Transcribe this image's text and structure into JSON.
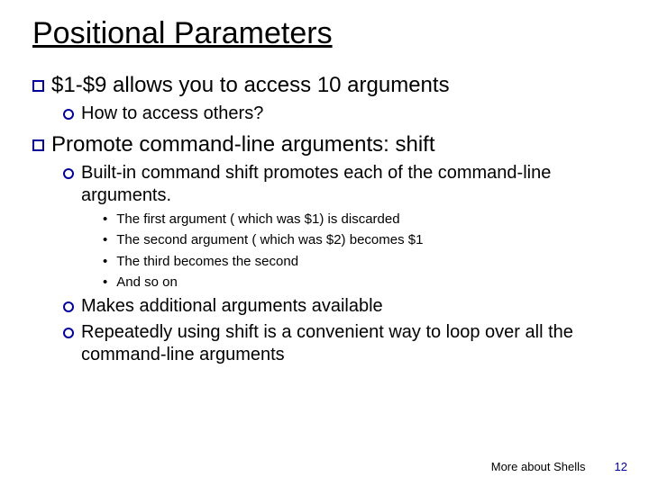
{
  "title": "Positional Parameters",
  "colors": {
    "bullet_outline": "#000099",
    "text": "#000000",
    "page_number": "#000099",
    "background": "#ffffff"
  },
  "typography": {
    "font_family": "Comic Sans MS",
    "title_fontsize": 34,
    "lvl1_fontsize": 24,
    "lvl2_fontsize": 20,
    "lvl3_fontsize": 15,
    "footer_fontsize": 13
  },
  "bullets": {
    "lvl1_shape": "hollow-square",
    "lvl2_shape": "hollow-circle",
    "lvl3_shape": "dot"
  },
  "items": {
    "p1": "$1-$9 allows you to access 10 arguments",
    "p1_1": "How to access others?",
    "p2": "Promote command-line arguments: shift",
    "p2_1": "Built-in command shift promotes each of the command-line arguments.",
    "p2_1_a": "The first argument ( which was $1) is discarded",
    "p2_1_b": "The second argument ( which was $2) becomes $1",
    "p2_1_c": "The third becomes the second",
    "p2_1_d": "And so on",
    "p2_2": "Makes additional arguments available",
    "p2_3": "Repeatedly using shift is a convenient way to loop over all the command-line arguments"
  },
  "footer": {
    "label": "More about Shells",
    "page": "12"
  }
}
